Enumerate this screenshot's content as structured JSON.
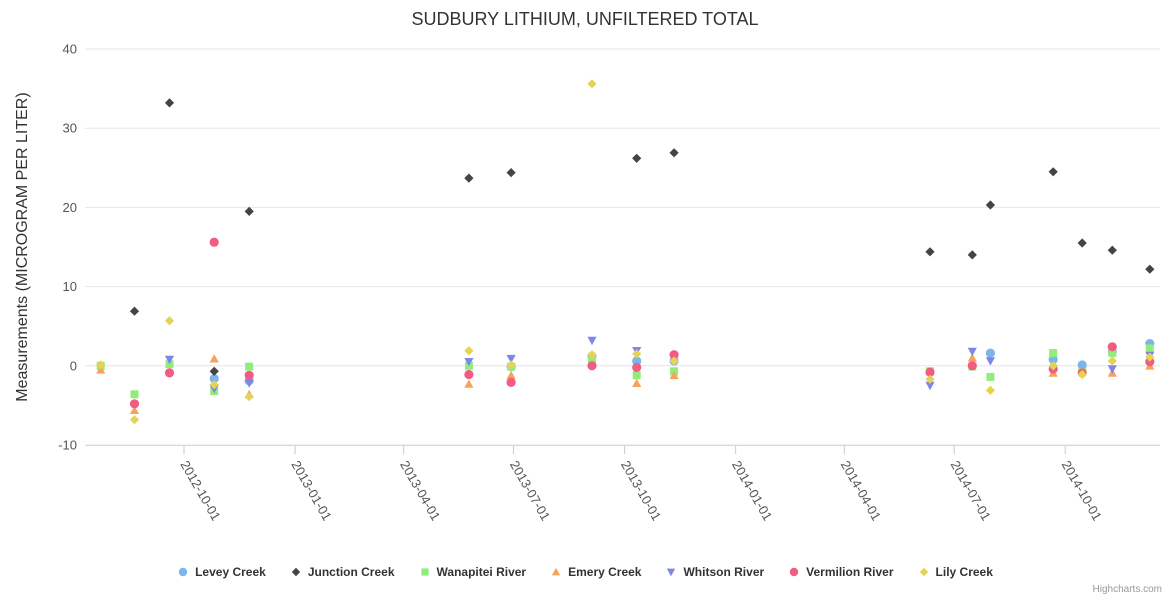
{
  "chart": {
    "title": "SUDBURY LITHIUM, UNFILTERED TOTAL",
    "credit": "Highcharts.com"
  },
  "chart_data": {
    "type": "scatter",
    "title": "SUDBURY LITHIUM, UNFILTERED TOTAL",
    "xlabel": "",
    "ylabel": "Measurements (MICROGRAM PER LITER)",
    "x_axis": {
      "type": "datetime",
      "min": "2012-07-11",
      "max": "2014-12-16",
      "tick_labels": [
        "2012-10-01",
        "2013-01-01",
        "2013-04-01",
        "2013-07-01",
        "2013-10-01",
        "2014-01-01",
        "2014-04-01",
        "2014-07-01",
        "2014-10-01"
      ],
      "label_rotation_deg": 60
    },
    "y_axis": {
      "min": -10,
      "max": 40,
      "ticks": [
        -10,
        0,
        10,
        20,
        30,
        40
      ]
    },
    "grid": true,
    "legend_position": "bottom-center",
    "series": [
      {
        "name": "Levey Creek",
        "color": "#7cb5ec",
        "marker": "circle",
        "points": [
          [
            "2012-10-26",
            -1.6
          ],
          [
            "2012-11-24",
            -1.9
          ],
          [
            "2013-06-29",
            -0.1
          ],
          [
            "2013-09-04",
            1.2
          ],
          [
            "2013-10-11",
            0.6
          ],
          [
            "2013-11-11",
            0.6
          ],
          [
            "2014-07-31",
            1.6
          ],
          [
            "2014-09-21",
            0.8
          ],
          [
            "2014-10-15",
            0.1
          ],
          [
            "2014-11-09",
            1.8
          ],
          [
            "2014-12-10",
            2.8
          ]
        ]
      },
      {
        "name": "Junction Creek",
        "color": "#434348",
        "marker": "diamond",
        "points": [
          [
            "2012-08-21",
            6.9
          ],
          [
            "2012-09-19",
            33.2
          ],
          [
            "2012-10-26",
            -0.7
          ],
          [
            "2012-11-24",
            19.5
          ],
          [
            "2013-05-25",
            23.7
          ],
          [
            "2013-06-29",
            24.4
          ],
          [
            "2013-10-11",
            26.2
          ],
          [
            "2013-11-11",
            26.9
          ],
          [
            "2014-06-11",
            14.4
          ],
          [
            "2014-07-16",
            14.0
          ],
          [
            "2014-07-31",
            20.3
          ],
          [
            "2014-09-21",
            24.5
          ],
          [
            "2014-10-15",
            15.5
          ],
          [
            "2014-11-09",
            14.6
          ],
          [
            "2014-12-10",
            12.2
          ]
        ]
      },
      {
        "name": "Wanapitei River",
        "color": "#90ed7d",
        "marker": "square",
        "points": [
          [
            "2012-07-24",
            0.0
          ],
          [
            "2012-08-21",
            -3.6
          ],
          [
            "2012-09-19",
            0.2
          ],
          [
            "2012-10-26",
            -3.2
          ],
          [
            "2012-11-24",
            -0.1
          ],
          [
            "2013-05-25",
            0.0
          ],
          [
            "2013-06-29",
            -0.1
          ],
          [
            "2013-09-04",
            0.7
          ],
          [
            "2013-10-11",
            -1.2
          ],
          [
            "2013-11-11",
            -0.7
          ],
          [
            "2014-06-11",
            -0.7
          ],
          [
            "2014-07-16",
            -0.1
          ],
          [
            "2014-07-31",
            -1.4
          ],
          [
            "2014-09-21",
            1.6
          ],
          [
            "2014-10-15",
            -0.8
          ],
          [
            "2014-11-09",
            1.6
          ],
          [
            "2014-12-10",
            2.2
          ]
        ]
      },
      {
        "name": "Emery Creek",
        "color": "#f7a35c",
        "marker": "triangle",
        "points": [
          [
            "2012-07-24",
            -0.5
          ],
          [
            "2012-08-21",
            -5.6
          ],
          [
            "2012-10-26",
            0.9
          ],
          [
            "2012-11-24",
            -3.6
          ],
          [
            "2013-05-25",
            -2.3
          ],
          [
            "2013-06-29",
            -1.2
          ],
          [
            "2013-10-11",
            -2.2
          ],
          [
            "2013-11-11",
            -1.2
          ],
          [
            "2014-07-16",
            1.0
          ],
          [
            "2014-09-21",
            -0.9
          ],
          [
            "2014-11-09",
            -0.9
          ],
          [
            "2014-12-10",
            0.0
          ]
        ]
      },
      {
        "name": "Whitson River",
        "color": "#8085e9",
        "marker": "triangle-down",
        "points": [
          [
            "2012-09-19",
            0.8
          ],
          [
            "2012-10-26",
            -2.9
          ],
          [
            "2012-11-24",
            -2.2
          ],
          [
            "2013-05-25",
            0.5
          ],
          [
            "2013-06-29",
            0.9
          ],
          [
            "2013-09-04",
            3.2
          ],
          [
            "2013-10-11",
            1.9
          ],
          [
            "2013-11-11",
            1.1
          ],
          [
            "2014-06-11",
            -2.5
          ],
          [
            "2014-07-16",
            1.8
          ],
          [
            "2014-07-31",
            0.6
          ],
          [
            "2014-11-09",
            -0.4
          ],
          [
            "2014-12-10",
            1.3
          ]
        ]
      },
      {
        "name": "Vermilion River",
        "color": "#f15c80",
        "marker": "circle",
        "points": [
          [
            "2012-08-21",
            -4.8
          ],
          [
            "2012-09-19",
            -0.9
          ],
          [
            "2012-10-26",
            15.6
          ],
          [
            "2012-11-24",
            -1.2
          ],
          [
            "2013-05-25",
            -1.1
          ],
          [
            "2013-06-29",
            -2.1
          ],
          [
            "2013-09-04",
            0.0
          ],
          [
            "2013-10-11",
            -0.2
          ],
          [
            "2013-11-11",
            1.4
          ],
          [
            "2014-06-11",
            -0.8
          ],
          [
            "2014-07-16",
            0.0
          ],
          [
            "2014-09-21",
            -0.4
          ],
          [
            "2014-10-15",
            -0.9
          ],
          [
            "2014-11-09",
            2.4
          ],
          [
            "2014-12-10",
            0.5
          ]
        ]
      },
      {
        "name": "Lily Creek",
        "color": "#e4d354",
        "marker": "diamond",
        "points": [
          [
            "2012-07-24",
            0.1
          ],
          [
            "2012-08-21",
            -6.8
          ],
          [
            "2012-09-19",
            5.7
          ],
          [
            "2012-10-26",
            -2.4
          ],
          [
            "2012-11-24",
            -3.9
          ],
          [
            "2013-05-25",
            1.9
          ],
          [
            "2013-06-29",
            0.1
          ],
          [
            "2013-09-04",
            35.6
          ],
          [
            "2013-09-04",
            1.4
          ],
          [
            "2013-10-11",
            1.5
          ],
          [
            "2013-11-11",
            0.6
          ],
          [
            "2014-06-11",
            -1.7
          ],
          [
            "2014-07-31",
            -3.1
          ],
          [
            "2014-09-21",
            0.0
          ],
          [
            "2014-10-15",
            -1.1
          ],
          [
            "2014-11-09",
            0.6
          ],
          [
            "2014-12-10",
            1.1
          ]
        ]
      }
    ]
  }
}
